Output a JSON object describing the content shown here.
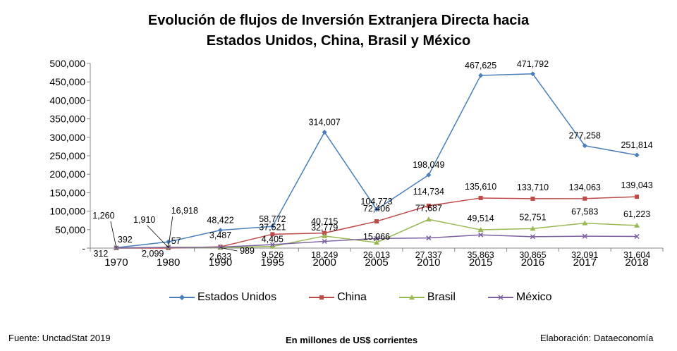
{
  "chart_data": {
    "type": "line",
    "title": "Evolución de flujos de Inversión Extranjera Directa hacia",
    "subtitle": "Estados Unidos, China, Brasil y México",
    "categories": [
      "1970",
      "1980",
      "1990",
      "1995",
      "2000",
      "2005",
      "2010",
      "2015",
      "2016",
      "2017",
      "2018"
    ],
    "ylim": [
      0,
      500000
    ],
    "yticks": [
      "-",
      "50,000",
      "100,000",
      "150,000",
      "200,000",
      "250,000",
      "300,000",
      "350,000",
      "400,000",
      "450,000",
      "500,000"
    ],
    "grid": false,
    "legend_position": "bottom",
    "series": [
      {
        "name": "Estados Unidos",
        "color": "#4a7ebb",
        "marker": "diamond",
        "values": [
          1260,
          16918,
          48422,
          58772,
          314007,
          104773,
          198049,
          467625,
          471792,
          277258,
          251814
        ],
        "labels": [
          "1,260",
          "16,918",
          "48,422",
          "58,772",
          "314,007",
          "104,773",
          "198,049",
          "467,625",
          "471,792",
          "277,258",
          "251,814"
        ]
      },
      {
        "name": "China",
        "color": "#be4b48",
        "marker": "square",
        "values": [
          0,
          57,
          3487,
          37521,
          40715,
          72406,
          114734,
          135610,
          133710,
          134063,
          139043
        ],
        "labels": [
          "",
          "57",
          "3,487",
          "37,521",
          "40,715",
          "72,406",
          "114,734",
          "135,610",
          "133,710",
          "134,063",
          "139,043"
        ]
      },
      {
        "name": "Brasil",
        "color": "#98b954",
        "marker": "triangle",
        "values": [
          392,
          1910,
          989,
          4405,
          32779,
          15066,
          77687,
          49514,
          52751,
          67583,
          61223
        ],
        "labels": [
          "392",
          "1,910",
          "989",
          "4,405",
          "32,779",
          "15,066",
          "77,687",
          "49,514",
          "52,751",
          "67,583",
          "61,223"
        ]
      },
      {
        "name": "México",
        "color": "#7d60a0",
        "marker": "cross",
        "values": [
          312,
          2099,
          2633,
          9526,
          18249,
          26013,
          27337,
          35863,
          30865,
          32091,
          31604
        ],
        "labels": [
          "312",
          "2,099",
          "2,633",
          "9,526",
          "18,249",
          "26,013",
          "27,337",
          "35,863",
          "30,865",
          "32,091",
          "31,604"
        ]
      }
    ]
  },
  "footer": {
    "source": "Fuente: UnctadStat 2019",
    "units": "En millones de US$ corrientes",
    "credit": "Elaboración: Dataeconomía"
  }
}
